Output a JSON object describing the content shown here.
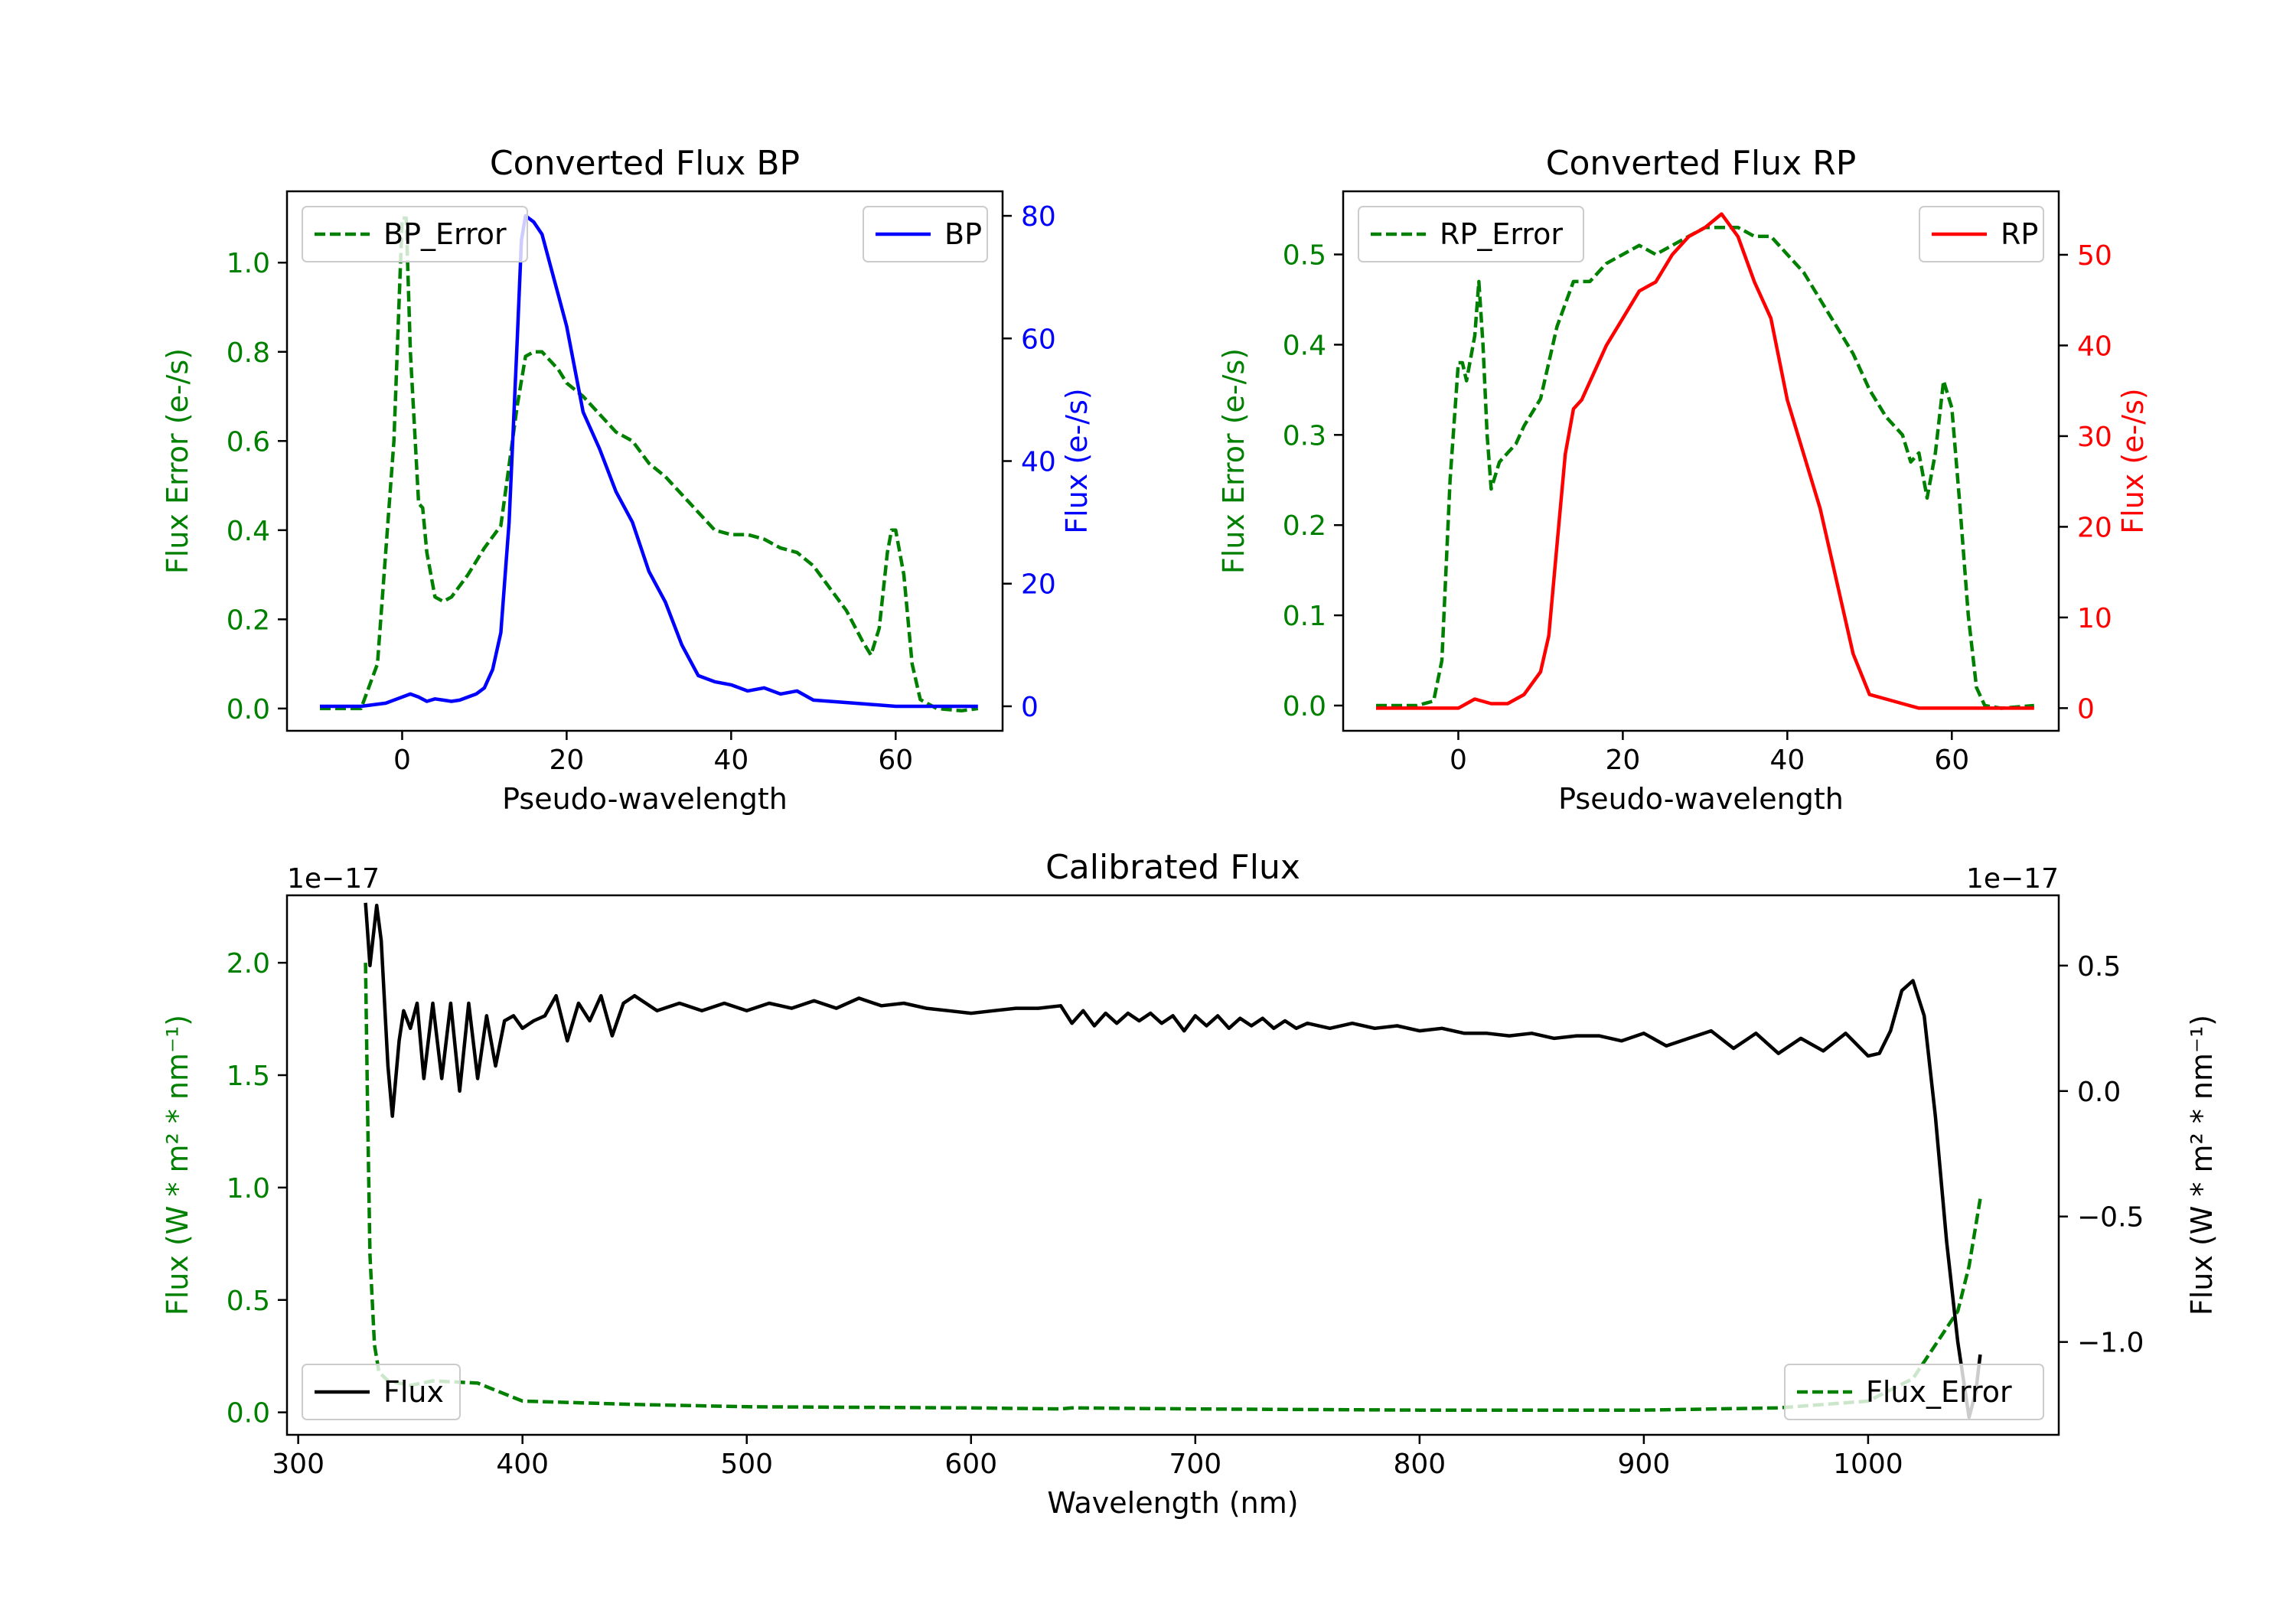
{
  "colors": {
    "bp_flux": "#0000ff",
    "rp_flux": "#ff0000",
    "error": "#008000",
    "calib_flux": "#000000",
    "axis": "#000000"
  },
  "chart_data": [
    {
      "id": "bp",
      "type": "line",
      "title": "Converted Flux BP",
      "xlabel": "Pseudo-wavelength",
      "xlim": [
        -14,
        73
      ],
      "xticks": [
        0,
        20,
        40,
        60
      ],
      "left_axis": {
        "label": "Flux Error (e-/s)",
        "ylim": [
          -0.05,
          1.16
        ],
        "ticks": [
          0.0,
          0.2,
          0.4,
          0.6,
          0.8,
          1.0
        ],
        "tick_labels": [
          "0.0",
          "0.2",
          "0.4",
          "0.6",
          "0.8",
          "1.0"
        ],
        "color": "#008000"
      },
      "right_axis": {
        "label": "Flux (e-/s)",
        "ylim": [
          -4,
          84
        ],
        "ticks": [
          0,
          20,
          40,
          60,
          80
        ],
        "tick_labels": [
          "0",
          "20",
          "40",
          "60",
          "80"
        ],
        "color": "#0000ff"
      },
      "legend_left": "BP_Error",
      "legend_right": "BP",
      "series": [
        {
          "name": "BP_Error",
          "axis": "left",
          "style": "dashed",
          "color": "#008000",
          "x": [
            -10,
            -5,
            -3,
            -1,
            0,
            0.5,
            1,
            2,
            2.5,
            3,
            4,
            5,
            6,
            8,
            10,
            12,
            14,
            15,
            16,
            17,
            18,
            19,
            20,
            22,
            24,
            26,
            28,
            30,
            32,
            34,
            36,
            38,
            40,
            42,
            44,
            46,
            48,
            50,
            52,
            54,
            56,
            57,
            58,
            59,
            59.5,
            60,
            61,
            62,
            63,
            65,
            68,
            70
          ],
          "y": [
            0.0,
            0.0,
            0.1,
            0.6,
            1.1,
            1.1,
            0.8,
            0.46,
            0.45,
            0.35,
            0.25,
            0.24,
            0.25,
            0.3,
            0.36,
            0.41,
            0.68,
            0.79,
            0.8,
            0.8,
            0.78,
            0.76,
            0.73,
            0.7,
            0.66,
            0.62,
            0.6,
            0.55,
            0.52,
            0.48,
            0.44,
            0.4,
            0.39,
            0.39,
            0.38,
            0.36,
            0.35,
            0.32,
            0.27,
            0.22,
            0.15,
            0.12,
            0.18,
            0.35,
            0.4,
            0.4,
            0.3,
            0.1,
            0.02,
            0.0,
            -0.005,
            0.0
          ]
        },
        {
          "name": "BP",
          "axis": "right",
          "style": "solid",
          "color": "#0000ff",
          "x": [
            -10,
            -5,
            -2,
            0,
            1,
            2,
            3,
            4,
            5,
            6,
            7,
            8,
            9,
            10,
            11,
            12,
            13,
            14,
            14.5,
            15,
            16,
            17,
            18,
            19,
            20,
            22,
            24,
            26,
            28,
            30,
            32,
            34,
            36,
            38,
            40,
            42,
            44,
            46,
            48,
            50,
            55,
            60,
            65,
            70
          ],
          "y": [
            0,
            0,
            0.5,
            1.5,
            2,
            1.5,
            0.8,
            1.2,
            1,
            0.8,
            1,
            1.5,
            2,
            3,
            6,
            12,
            30,
            60,
            76,
            80,
            79,
            77,
            72,
            67,
            62,
            48,
            42,
            35,
            30,
            22,
            17,
            10,
            5,
            4,
            3.5,
            2.5,
            3,
            2,
            2.5,
            1,
            0.5,
            0,
            0,
            0
          ]
        }
      ]
    },
    {
      "id": "rp",
      "type": "line",
      "title": "Converted Flux RP",
      "xlabel": "Pseudo-wavelength",
      "xlim": [
        -14,
        73
      ],
      "xticks": [
        0,
        20,
        40,
        60
      ],
      "left_axis": {
        "label": "Flux Error (e-/s)",
        "ylim": [
          -0.028,
          0.57
        ],
        "ticks": [
          0.0,
          0.1,
          0.2,
          0.3,
          0.4,
          0.5
        ],
        "tick_labels": [
          "0.0",
          "0.1",
          "0.2",
          "0.3",
          "0.4",
          "0.5"
        ],
        "color": "#008000"
      },
      "right_axis": {
        "label": "Flux (e-/s)",
        "ylim": [
          -2.5,
          57
        ],
        "ticks": [
          0,
          10,
          20,
          30,
          40,
          50
        ],
        "tick_labels": [
          "0",
          "10",
          "20",
          "30",
          "40",
          "50"
        ],
        "color": "#ff0000"
      },
      "legend_left": "RP_Error",
      "legend_right": "RP",
      "series": [
        {
          "name": "RP_Error",
          "axis": "left",
          "style": "dashed",
          "color": "#008000",
          "x": [
            -10,
            -5,
            -3,
            -2,
            -1,
            0,
            0.5,
            1,
            2,
            2.5,
            3,
            3.5,
            4,
            5,
            6,
            7,
            8,
            10,
            12,
            14,
            16,
            18,
            20,
            22,
            24,
            26,
            28,
            30,
            32,
            34,
            36,
            38,
            40,
            42,
            44,
            46,
            48,
            50,
            52,
            54,
            55,
            56,
            57,
            58,
            59,
            60,
            61,
            62,
            63,
            64,
            66,
            70
          ],
          "y": [
            0.0,
            0.0,
            0.005,
            0.05,
            0.25,
            0.38,
            0.38,
            0.36,
            0.41,
            0.47,
            0.4,
            0.3,
            0.24,
            0.27,
            0.28,
            0.29,
            0.31,
            0.34,
            0.42,
            0.47,
            0.47,
            0.49,
            0.5,
            0.51,
            0.5,
            0.51,
            0.52,
            0.53,
            0.53,
            0.53,
            0.52,
            0.52,
            0.5,
            0.48,
            0.45,
            0.42,
            0.39,
            0.35,
            0.32,
            0.3,
            0.27,
            0.28,
            0.23,
            0.28,
            0.36,
            0.33,
            0.22,
            0.1,
            0.02,
            0.0,
            -0.003,
            0.0
          ]
        },
        {
          "name": "RP",
          "axis": "right",
          "style": "solid",
          "color": "#ff0000",
          "x": [
            -10,
            -5,
            0,
            2,
            4,
            6,
            8,
            10,
            11,
            12,
            13,
            14,
            15,
            16,
            18,
            20,
            22,
            24,
            26,
            28,
            30,
            32,
            34,
            36,
            38,
            40,
            42,
            44,
            46,
            48,
            50,
            52,
            54,
            56,
            60,
            65,
            70
          ],
          "y": [
            0,
            0,
            0,
            1,
            0.5,
            0.5,
            1.5,
            4,
            8,
            18,
            28,
            33,
            34,
            36,
            40,
            43,
            46,
            47,
            50,
            52,
            53,
            54.5,
            52,
            47,
            43,
            34,
            28,
            22,
            14,
            6,
            1.5,
            1,
            0.5,
            0,
            0,
            0,
            0
          ]
        }
      ]
    },
    {
      "id": "calibrated",
      "type": "line",
      "title": "Calibrated Flux",
      "xlabel": "Wavelength (nm)",
      "xlim": [
        295,
        1085
      ],
      "xticks": [
        300,
        400,
        500,
        600,
        700,
        800,
        900,
        1000
      ],
      "left_axis": {
        "label": "Flux (W * m² * nm⁻¹)",
        "offset_text": "1e−17",
        "ylim": [
          -0.1,
          2.3
        ],
        "ticks": [
          0.0,
          0.5,
          1.0,
          1.5,
          2.0
        ],
        "tick_labels": [
          "0.0",
          "0.5",
          "1.0",
          "1.5",
          "2.0"
        ],
        "color": "#008000"
      },
      "right_axis": {
        "label": "Flux (W * m² * nm⁻¹)",
        "offset_text": "1e−17",
        "ylim": [
          -1.37,
          0.78
        ],
        "ticks": [
          -1.0,
          -0.5,
          0.0,
          0.5
        ],
        "tick_labels": [
          "−1.0",
          "−0.5",
          "0.0",
          "0.5"
        ],
        "color": "#000000"
      },
      "legend_left": "Flux",
      "legend_right": "Flux_Error",
      "series": [
        {
          "name": "Flux_Error",
          "axis": "left",
          "style": "dashed",
          "color": "#008000",
          "x": [
            330,
            331,
            332,
            334,
            336,
            340,
            350,
            360,
            380,
            400,
            450,
            500,
            600,
            640,
            645,
            700,
            800,
            900,
            960,
            1000,
            1020,
            1030,
            1040,
            1045,
            1050
          ],
          "y": [
            2.0,
            1.3,
            0.7,
            0.3,
            0.18,
            0.14,
            0.12,
            0.14,
            0.13,
            0.05,
            0.035,
            0.025,
            0.02,
            0.015,
            0.02,
            0.015,
            0.01,
            0.01,
            0.02,
            0.05,
            0.15,
            0.3,
            0.45,
            0.65,
            0.95
          ]
        },
        {
          "name": "Flux",
          "axis": "right",
          "style": "solid",
          "color": "#000000",
          "x": [
            330,
            332,
            335,
            337,
            340,
            342,
            345,
            347,
            350,
            353,
            356,
            360,
            364,
            368,
            372,
            376,
            380,
            384,
            388,
            392,
            396,
            400,
            405,
            410,
            415,
            420,
            425,
            430,
            435,
            440,
            445,
            450,
            460,
            470,
            480,
            490,
            500,
            510,
            520,
            530,
            540,
            550,
            560,
            570,
            580,
            590,
            600,
            610,
            620,
            630,
            640,
            645,
            650,
            655,
            660,
            665,
            670,
            675,
            680,
            685,
            690,
            695,
            700,
            705,
            710,
            715,
            720,
            725,
            730,
            735,
            740,
            745,
            750,
            760,
            770,
            780,
            790,
            800,
            810,
            820,
            830,
            840,
            850,
            860,
            870,
            880,
            890,
            900,
            910,
            920,
            930,
            940,
            950,
            960,
            970,
            980,
            990,
            1000,
            1005,
            1010,
            1015,
            1020,
            1025,
            1030,
            1035,
            1040,
            1045,
            1048,
            1050
          ],
          "y": [
            0.75,
            0.5,
            0.74,
            0.6,
            0.1,
            -0.1,
            0.2,
            0.32,
            0.25,
            0.35,
            0.05,
            0.35,
            0.05,
            0.35,
            0.0,
            0.35,
            0.05,
            0.3,
            0.1,
            0.28,
            0.3,
            0.25,
            0.28,
            0.3,
            0.38,
            0.2,
            0.35,
            0.28,
            0.38,
            0.22,
            0.35,
            0.38,
            0.32,
            0.35,
            0.32,
            0.35,
            0.32,
            0.35,
            0.33,
            0.36,
            0.33,
            0.37,
            0.34,
            0.35,
            0.33,
            0.32,
            0.31,
            0.32,
            0.33,
            0.33,
            0.34,
            0.27,
            0.32,
            0.26,
            0.31,
            0.27,
            0.31,
            0.28,
            0.31,
            0.27,
            0.3,
            0.24,
            0.3,
            0.26,
            0.3,
            0.25,
            0.29,
            0.26,
            0.29,
            0.25,
            0.28,
            0.25,
            0.27,
            0.25,
            0.27,
            0.25,
            0.26,
            0.24,
            0.25,
            0.23,
            0.23,
            0.22,
            0.23,
            0.21,
            0.22,
            0.22,
            0.2,
            0.23,
            0.18,
            0.21,
            0.24,
            0.17,
            0.23,
            0.15,
            0.21,
            0.16,
            0.23,
            0.14,
            0.15,
            0.24,
            0.4,
            0.44,
            0.3,
            -0.1,
            -0.6,
            -1.0,
            -1.3,
            -1.2,
            -1.05
          ]
        }
      ]
    }
  ]
}
